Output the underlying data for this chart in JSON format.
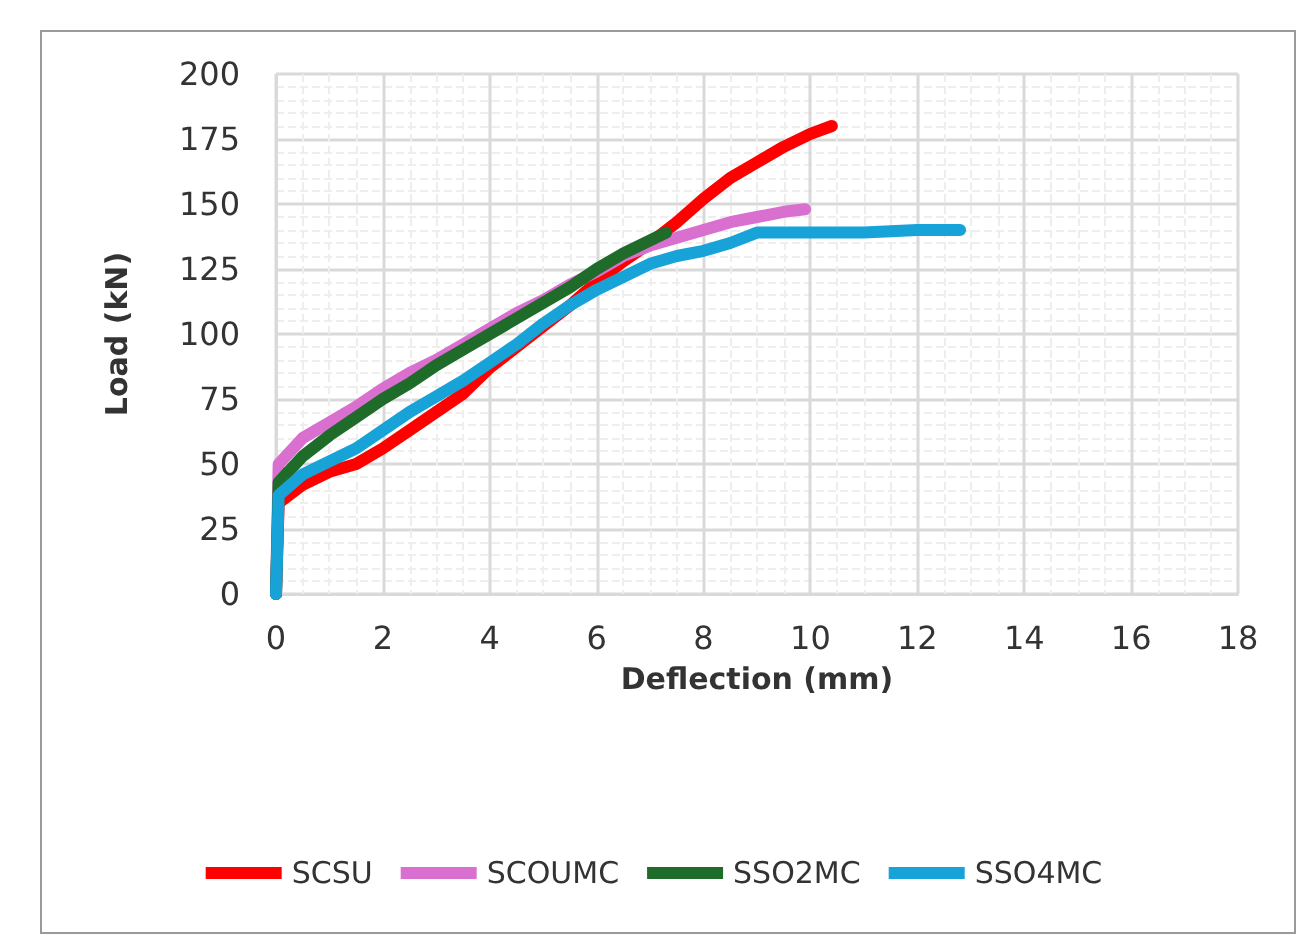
{
  "chart_data": {
    "type": "line",
    "xlabel": "Deflection (mm)",
    "ylabel": "Load (kN)",
    "xlim": [
      0,
      18
    ],
    "xticks": [
      0,
      2,
      4,
      6,
      8,
      10,
      12,
      14,
      16,
      18
    ],
    "ylim": [
      0,
      200
    ],
    "yticks": [
      0,
      25,
      50,
      75,
      100,
      125,
      150,
      175,
      200
    ],
    "grid": true,
    "legend": "bottom",
    "marker": "none",
    "line_style": "solid",
    "series": [
      {
        "name": "SCSU",
        "color": "#ff0000",
        "x": [
          0,
          0.05,
          0.5,
          1,
          1.5,
          2,
          2.5,
          3,
          3.5,
          4,
          4.5,
          5,
          5.5,
          6,
          6.5,
          7,
          7.5,
          8,
          8.5,
          9,
          9.5,
          10,
          10.4
        ],
        "values": [
          0,
          35,
          42,
          47,
          50,
          56,
          63,
          70,
          77,
          87,
          95,
          103,
          111,
          120,
          128,
          135,
          143,
          152,
          160,
          166,
          172,
          177,
          180
        ]
      },
      {
        "name": "SCOUMC",
        "color": "#d96fcf",
        "x": [
          0,
          0.05,
          0.5,
          1,
          1.5,
          2,
          2.5,
          3,
          3.5,
          4,
          4.5,
          5,
          5.5,
          6,
          6.5,
          7,
          7.5,
          8,
          8.5,
          9,
          9.5,
          9.9
        ],
        "values": [
          0,
          50,
          60,
          66,
          72,
          79,
          85,
          90,
          96,
          102,
          108,
          113,
          119,
          124,
          130,
          134,
          137,
          140,
          143,
          145,
          147,
          148
        ]
      },
      {
        "name": "SSO2MC",
        "color": "#1e6b2a",
        "x": [
          0,
          0.05,
          0.5,
          1,
          1.5,
          2,
          2.5,
          3,
          3.5,
          4,
          4.5,
          5,
          5.5,
          6,
          6.5,
          7,
          7.3
        ],
        "values": [
          0,
          43,
          53,
          61,
          68,
          75,
          81,
          88,
          94,
          100,
          106,
          112,
          118,
          125,
          131,
          136,
          139
        ]
      },
      {
        "name": "SSO4MC",
        "color": "#17a2d8",
        "x": [
          0,
          0.05,
          0.5,
          1,
          1.5,
          2,
          2.5,
          3,
          3.5,
          4,
          4.5,
          5,
          5.5,
          6,
          6.5,
          7,
          7.5,
          8,
          8.5,
          9,
          9.5,
          10,
          11,
          12,
          12.8
        ],
        "values": [
          0,
          38,
          46,
          51,
          56,
          63,
          70,
          76,
          82,
          89,
          96,
          104,
          111,
          117,
          122,
          127,
          130,
          132,
          135,
          139,
          139,
          139,
          139,
          140,
          140
        ]
      }
    ]
  }
}
